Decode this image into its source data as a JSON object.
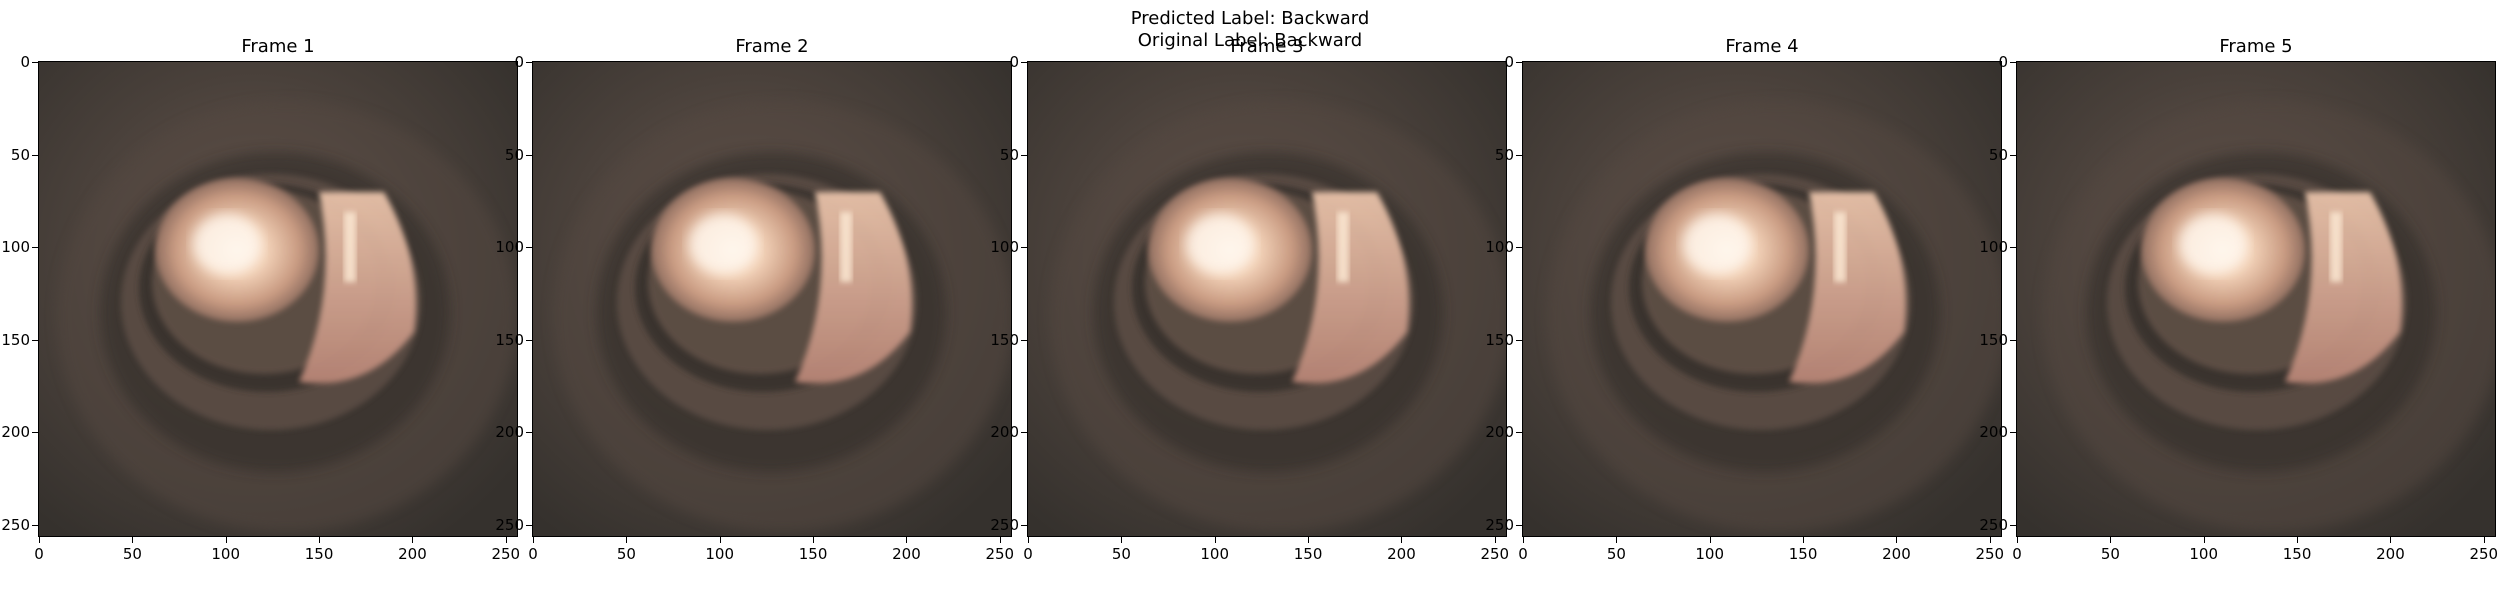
{
  "figure": {
    "title_line1": "Predicted Label: Backward",
    "title_line2": "Original Label: Backward"
  },
  "frames": [
    {
      "title": "Frame 1"
    },
    {
      "title": "Frame 2"
    },
    {
      "title": "Frame 3"
    },
    {
      "title": "Frame 4"
    },
    {
      "title": "Frame 5"
    }
  ],
  "axes": {
    "x_ticks": [
      "0",
      "50",
      "100",
      "150",
      "200",
      "250"
    ],
    "y_ticks": [
      "0",
      "50",
      "100",
      "150",
      "200",
      "250"
    ]
  },
  "colors": {
    "background_tissue": "#3b3631",
    "lumen_glow": "#f7dcc4",
    "wall_pink": "#c89a8a"
  }
}
